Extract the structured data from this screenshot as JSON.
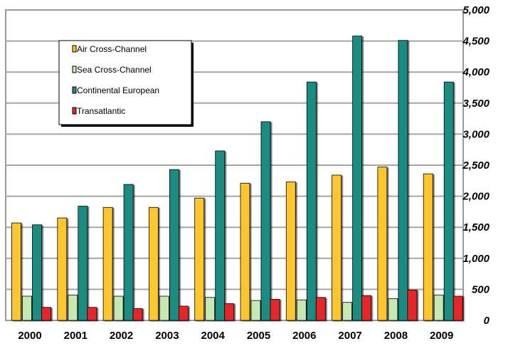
{
  "chart_data": {
    "type": "bar",
    "categories": [
      "2000",
      "2001",
      "2002",
      "2003",
      "2004",
      "2005",
      "2006",
      "2007",
      "2008",
      "2009"
    ],
    "series": [
      {
        "name": "Air Cross-Channel",
        "color": "#FFC62E",
        "values": [
          1570,
          1650,
          1820,
          1820,
          1970,
          2210,
          2230,
          2340,
          2470,
          2360
        ]
      },
      {
        "name": "Sea Cross-Channel",
        "color": "#C6E8B2",
        "values": [
          390,
          410,
          390,
          390,
          370,
          320,
          330,
          290,
          350,
          410
        ]
      },
      {
        "name": "Continental European",
        "color": "#1F8C82",
        "values": [
          1540,
          1840,
          2190,
          2430,
          2730,
          3200,
          3840,
          4580,
          4510,
          3840
        ]
      },
      {
        "name": "Transatlantic",
        "color": "#E8262B",
        "values": [
          210,
          210,
          190,
          230,
          270,
          340,
          370,
          400,
          490,
          390
        ]
      }
    ],
    "y_ticks": [
      "0",
      "500",
      "1,000",
      "1,500",
      "2,000",
      "2,500",
      "3,000",
      "3,500",
      "4,000",
      "4,500",
      "5,000"
    ],
    "ylim": [
      0,
      5000
    ],
    "y_tick_step": 500,
    "grid": true,
    "legend_position": "top-left"
  }
}
